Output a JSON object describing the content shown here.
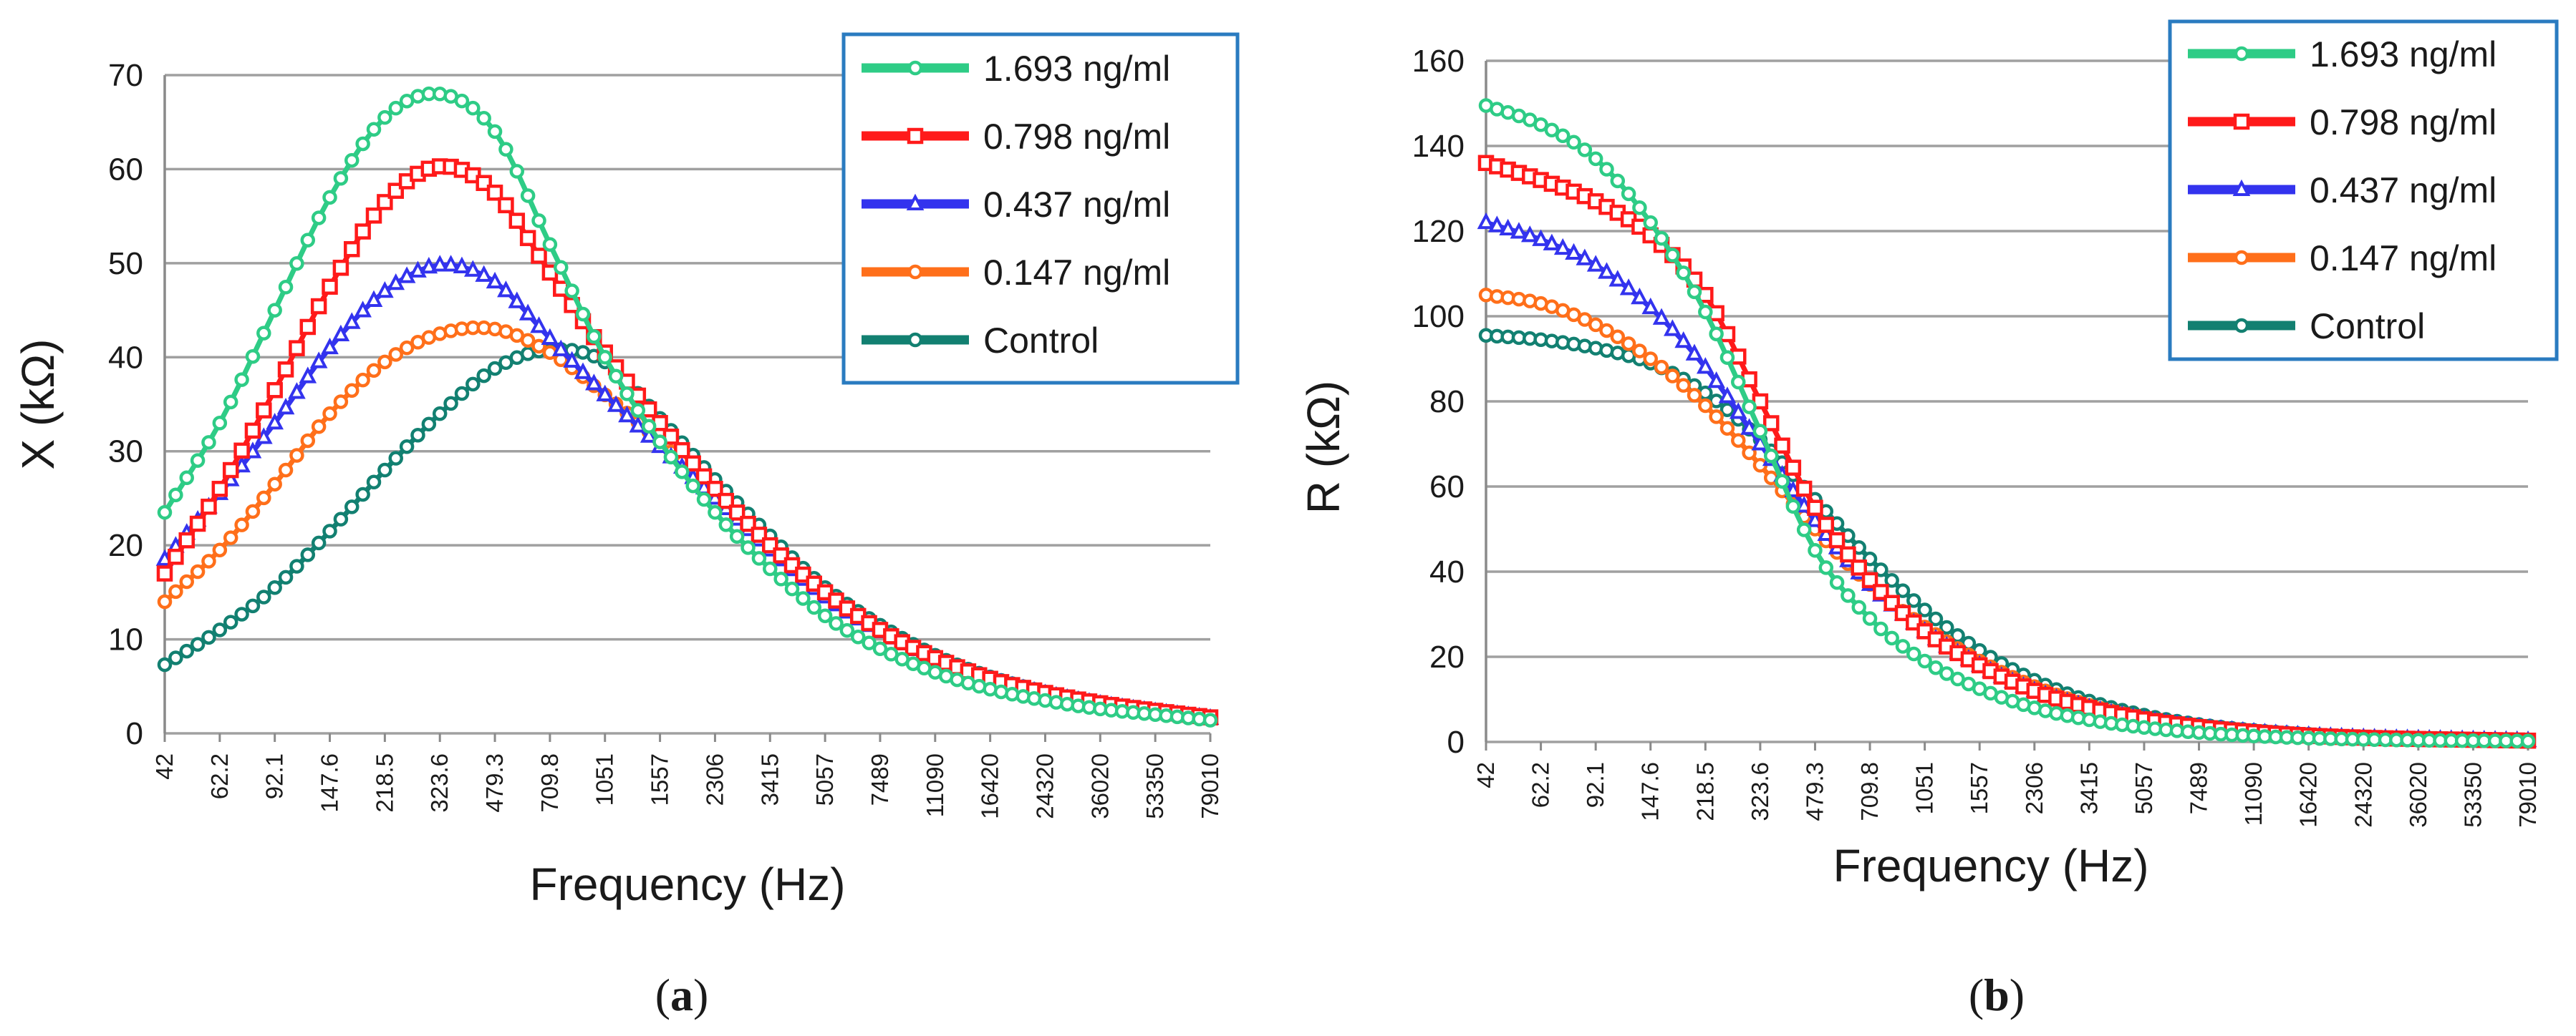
{
  "chart_data": [
    {
      "type": "line",
      "panel": "(a)",
      "caption_open": "(",
      "caption_letter": "a",
      "caption_close": ")",
      "xlabel": "Frequency (Hz)",
      "ylabel": "X (kΩ)",
      "ylim": [
        0,
        70
      ],
      "yticks": [
        0,
        10,
        20,
        30,
        40,
        50,
        60,
        70
      ],
      "grid": true,
      "legend_position": "top-right",
      "x_tick_labels": [
        "42",
        "62.2",
        "92.1",
        "147.6",
        "218.5",
        "323.6",
        "479.3",
        "709.8",
        "1051",
        "1557",
        "2306",
        "3415",
        "5057",
        "7489",
        "11090",
        "16420",
        "24320",
        "36020",
        "53350",
        "79010"
      ],
      "series": [
        {
          "name": "1.693 ng/ml",
          "color": "#2ecc86",
          "marker": "circle",
          "values": [
            23.5,
            33,
            45,
            57,
            65.5,
            68,
            64,
            52,
            40,
            31,
            23.5,
            17.5,
            12.5,
            9,
            6.5,
            4.7,
            3.5,
            2.6,
            2,
            1.4
          ]
        },
        {
          "name": "0.798 ng/ml",
          "color": "#ff1a1a",
          "marker": "square",
          "values": [
            17,
            26,
            36.5,
            47.5,
            56.5,
            60.3,
            57.5,
            49,
            40.5,
            33,
            26,
            20,
            15,
            11,
            8,
            5.8,
            4.3,
            3.2,
            2.4,
            1.7
          ]
        },
        {
          "name": "0.437 ng/ml",
          "color": "#3333ee",
          "marker": "triangle",
          "values": [
            18.5,
            25.5,
            33,
            41,
            47,
            49.8,
            48,
            42,
            36,
            30.5,
            25,
            19.5,
            14.5,
            10.8,
            7.8,
            5.7,
            4.2,
            3.1,
            2.3,
            1.6
          ]
        },
        {
          "name": "0.147 ng/ml",
          "color": "#ff6f1a",
          "marker": "circle",
          "values": [
            14,
            19.5,
            26.5,
            34,
            39.5,
            42.5,
            43,
            40.5,
            36,
            31,
            25.5,
            20,
            15,
            11,
            8,
            5.8,
            4.3,
            3.2,
            2.4,
            1.7
          ]
        },
        {
          "name": "Control",
          "color": "#128071",
          "marker": "circle",
          "values": [
            7.3,
            11,
            15.5,
            21.5,
            28,
            34,
            38.8,
            40.8,
            39.5,
            33.5,
            27,
            21,
            15.5,
            11.5,
            8.3,
            6,
            4.4,
            3.3,
            2.4,
            1.7
          ]
        }
      ]
    },
    {
      "type": "line",
      "panel": "(b)",
      "caption_open": "(",
      "caption_letter": "b",
      "caption_close": ")",
      "xlabel": "Frequency (Hz)",
      "ylabel": "R (kΩ)",
      "ylim": [
        0,
        160
      ],
      "yticks": [
        0,
        20,
        40,
        60,
        80,
        100,
        120,
        140,
        160
      ],
      "grid": true,
      "legend_position": "top-right",
      "x_tick_labels": [
        "42",
        "62.2",
        "92.1",
        "147.6",
        "218.5",
        "323.6",
        "479.3",
        "709.8",
        "1051",
        "1557",
        "2306",
        "3415",
        "5057",
        "7489",
        "11090",
        "16420",
        "24320",
        "36020",
        "53350",
        "79010"
      ],
      "series": [
        {
          "name": "1.693 ng/ml",
          "color": "#2ecc86",
          "marker": "circle",
          "values": [
            149.5,
            145,
            137,
            122,
            101,
            73,
            45,
            29,
            19,
            12.5,
            8,
            5.2,
            3.4,
            2.2,
            1.4,
            0.9,
            0.6,
            0.4,
            0.3,
            0.2
          ]
        },
        {
          "name": "0.798 ng/ml",
          "color": "#ff1a1a",
          "marker": "square",
          "values": [
            136,
            132,
            127,
            119,
            105,
            80,
            55,
            38,
            26,
            18,
            12,
            8,
            5.3,
            3.5,
            2.3,
            1.5,
            1,
            0.7,
            0.5,
            0.3
          ]
        },
        {
          "name": "0.437 ng/ml",
          "color": "#3333ee",
          "marker": "triangle",
          "values": [
            122,
            118,
            112,
            102,
            88,
            70,
            52,
            37,
            26,
            18,
            12,
            8,
            5.3,
            3.5,
            2.3,
            1.5,
            1,
            0.7,
            0.5,
            0.3
          ]
        },
        {
          "name": "0.147 ng/ml",
          "color": "#ff6f1a",
          "marker": "circle",
          "values": [
            105,
            103,
            98,
            90,
            79,
            65,
            50,
            37,
            27,
            19,
            13,
            8.6,
            5.6,
            3.7,
            2.4,
            1.6,
            1,
            0.7,
            0.5,
            0.3
          ]
        },
        {
          "name": "Control",
          "color": "#128071",
          "marker": "circle",
          "values": [
            95.5,
            94.5,
            92.5,
            89,
            82,
            71,
            57,
            43,
            31,
            21.5,
            14.5,
            9.6,
            6.3,
            4.1,
            2.7,
            1.8,
            1.1,
            0.8,
            0.5,
            0.3
          ]
        }
      ]
    }
  ]
}
